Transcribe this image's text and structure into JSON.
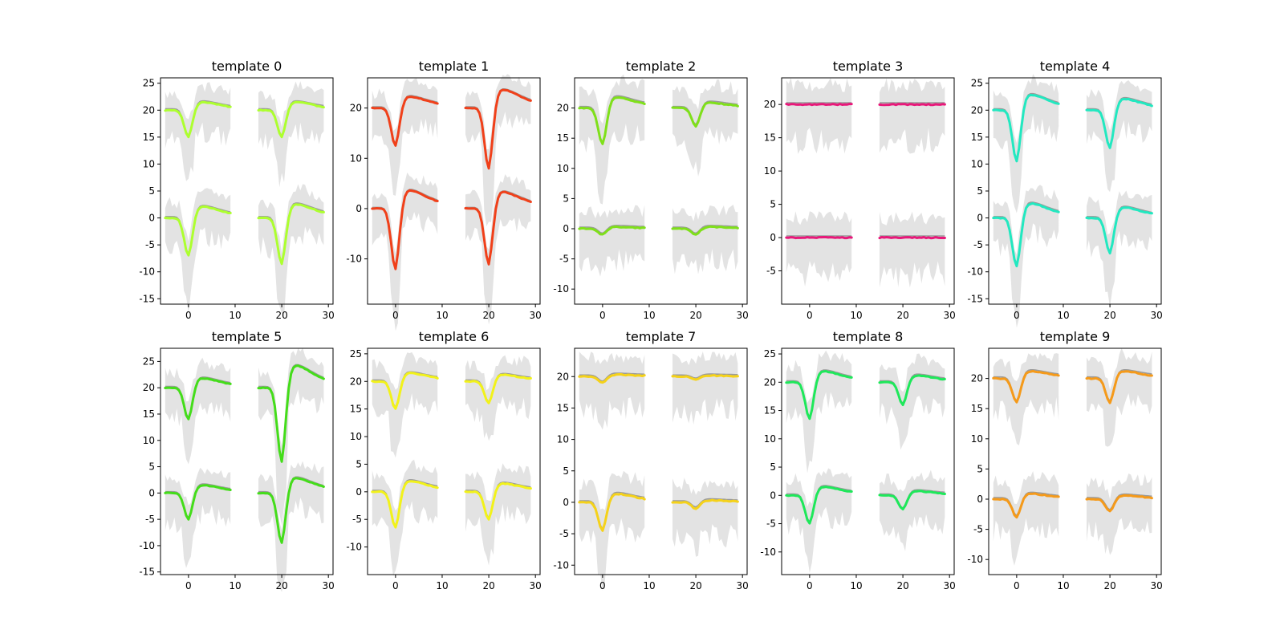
{
  "chart_data": [
    {
      "type": "line",
      "title": "template 0",
      "color": "#adff2f",
      "ylim": [
        -16,
        26
      ],
      "yticks": [
        -15,
        -10,
        -5,
        0,
        5,
        10,
        15,
        20,
        25
      ],
      "xticks": [
        0,
        10,
        20,
        30
      ],
      "xlim": [
        -6,
        31
      ],
      "channels": [
        {
          "offset": 20,
          "amps": [
            5,
            5
          ]
        },
        {
          "offset": 0,
          "amps": [
            7,
            8.5
          ]
        }
      ]
    },
    {
      "type": "line",
      "title": "template 1",
      "color": "#f0401a",
      "ylim": [
        -19,
        26
      ],
      "yticks": [
        -10,
        0,
        10,
        20
      ],
      "xticks": [
        0,
        10,
        20,
        30
      ],
      "xlim": [
        -6,
        31
      ],
      "channels": [
        {
          "offset": 20,
          "amps": [
            7.5,
            12
          ]
        },
        {
          "offset": 0,
          "amps": [
            12,
            11
          ]
        }
      ]
    },
    {
      "type": "line",
      "title": "template 2",
      "color": "#7fe01a",
      "ylim": [
        -12.5,
        25
      ],
      "yticks": [
        -10,
        -5,
        0,
        5,
        10,
        15,
        20
      ],
      "xticks": [
        0,
        10,
        20,
        30
      ],
      "xlim": [
        -6,
        31
      ],
      "channels": [
        {
          "offset": 20,
          "amps": [
            6,
            3
          ]
        },
        {
          "offset": 0,
          "amps": [
            1,
            1
          ]
        }
      ]
    },
    {
      "type": "line",
      "title": "template 3",
      "color": "#e8187a",
      "ylim": [
        -10,
        24
      ],
      "yticks": [
        -5,
        0,
        5,
        10,
        15,
        20
      ],
      "xticks": [
        0,
        10,
        20,
        30
      ],
      "xlim": [
        -6,
        31
      ],
      "channels": [
        {
          "offset": 20,
          "amps": [
            0,
            0
          ]
        },
        {
          "offset": 0,
          "amps": [
            0,
            0
          ]
        }
      ]
    },
    {
      "type": "line",
      "title": "template 4",
      "color": "#22e8c0",
      "ylim": [
        -16,
        26
      ],
      "yticks": [
        -15,
        -10,
        -5,
        0,
        5,
        10,
        15,
        20,
        25
      ],
      "xticks": [
        0,
        10,
        20,
        30
      ],
      "xlim": [
        -6,
        31
      ],
      "channels": [
        {
          "offset": 20,
          "amps": [
            9.5,
            7
          ]
        },
        {
          "offset": 0,
          "amps": [
            9,
            6.5
          ]
        }
      ]
    },
    {
      "type": "line",
      "title": "template 5",
      "color": "#44dd1a",
      "ylim": [
        -15.5,
        27.5
      ],
      "yticks": [
        -15,
        -10,
        -5,
        0,
        5,
        10,
        15,
        20,
        25
      ],
      "xticks": [
        0,
        10,
        20,
        30
      ],
      "xlim": [
        -6,
        31
      ],
      "channels": [
        {
          "offset": 20,
          "amps": [
            6,
            14
          ]
        },
        {
          "offset": 0,
          "amps": [
            5,
            9.5
          ]
        }
      ]
    },
    {
      "type": "line",
      "title": "template 6",
      "color": "#f2f21a",
      "ylim": [
        -15,
        26
      ],
      "yticks": [
        -10,
        -5,
        0,
        5,
        10,
        15,
        20,
        25
      ],
      "xticks": [
        0,
        10,
        20,
        30
      ],
      "xlim": [
        -6,
        31
      ],
      "channels": [
        {
          "offset": 20,
          "amps": [
            5,
            4
          ]
        },
        {
          "offset": 0,
          "amps": [
            6.5,
            5
          ]
        }
      ]
    },
    {
      "type": "line",
      "title": "template 7",
      "color": "#f5d21a",
      "ylim": [
        -11.5,
        24.5
      ],
      "yticks": [
        -10,
        -5,
        0,
        5,
        10,
        15,
        20
      ],
      "xticks": [
        0,
        10,
        20,
        30
      ],
      "xlim": [
        -6,
        31
      ],
      "channels": [
        {
          "offset": 20,
          "amps": [
            1,
            0.5
          ]
        },
        {
          "offset": 0,
          "amps": [
            4.5,
            1
          ]
        }
      ]
    },
    {
      "type": "line",
      "title": "template 8",
      "color": "#1ee85a",
      "ylim": [
        -14,
        26
      ],
      "yticks": [
        -10,
        -5,
        0,
        5,
        10,
        15,
        20,
        25
      ],
      "xticks": [
        0,
        10,
        20,
        30
      ],
      "xlim": [
        -6,
        31
      ],
      "channels": [
        {
          "offset": 20,
          "amps": [
            6.5,
            4
          ]
        },
        {
          "offset": 0,
          "amps": [
            5,
            2.5
          ]
        }
      ]
    },
    {
      "type": "line",
      "title": "template 9",
      "color": "#f59a1a",
      "ylim": [
        -12.5,
        25
      ],
      "yticks": [
        -10,
        -5,
        0,
        5,
        10,
        15,
        20
      ],
      "xticks": [
        0,
        10,
        20,
        30
      ],
      "xlim": [
        -6,
        31
      ],
      "channels": [
        {
          "offset": 20,
          "amps": [
            4,
            4
          ]
        },
        {
          "offset": 0,
          "amps": [
            3,
            2
          ]
        }
      ]
    }
  ]
}
